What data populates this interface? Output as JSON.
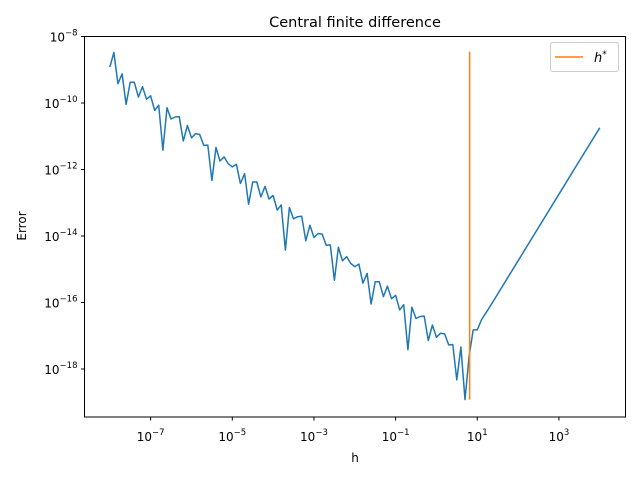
{
  "chart_data": {
    "type": "line",
    "title": "Central finite difference",
    "xlabel": "h",
    "ylabel": "Error",
    "xscale": "log",
    "yscale": "log",
    "xlim": [
      2.4e-09,
      42700
    ],
    "ylim": [
      3.6e-20,
      1e-08
    ],
    "grid": false,
    "legend_placement": "top-right",
    "xticks": [
      {
        "value": 1e-07,
        "base": "10",
        "exp": "−7"
      },
      {
        "value": 1e-05,
        "base": "10",
        "exp": "−5"
      },
      {
        "value": 0.001,
        "base": "10",
        "exp": "−3"
      },
      {
        "value": 0.1,
        "base": "10",
        "exp": "−1"
      },
      {
        "value": 10.0,
        "base": "10",
        "exp": "1"
      },
      {
        "value": 1000.0,
        "base": "10",
        "exp": "3"
      }
    ],
    "yticks": [
      {
        "value": 1e-08,
        "base": "10",
        "exp": "−8"
      },
      {
        "value": 1e-10,
        "base": "10",
        "exp": "−10"
      },
      {
        "value": 1e-12,
        "base": "10",
        "exp": "−12"
      },
      {
        "value": 1e-14,
        "base": "10",
        "exp": "−14"
      },
      {
        "value": 1e-16,
        "base": "10",
        "exp": "−16"
      },
      {
        "value": 1e-18,
        "base": "10",
        "exp": "−18"
      }
    ],
    "series": [
      {
        "color": "#1f77b4",
        "x": [
          1e-08,
          1.26e-08,
          1.58e-08,
          2e-08,
          2.51e-08,
          3.16e-08,
          3.98e-08,
          5.01e-08,
          6.31e-08,
          7.94e-08,
          1e-07,
          1.26e-07,
          1.58e-07,
          2e-07,
          2.51e-07,
          3.16e-07,
          3.98e-07,
          5.01e-07,
          6.31e-07,
          7.94e-07,
          1e-06,
          1.26e-06,
          1.58e-06,
          2e-06,
          2.51e-06,
          3.16e-06,
          3.98e-06,
          5.01e-06,
          6.31e-06,
          7.94e-06,
          1e-05,
          1.26e-05,
          1.58e-05,
          2e-05,
          2.51e-05,
          3.16e-05,
          3.98e-05,
          5.01e-05,
          6.31e-05,
          7.94e-05,
          0.0001,
          0.000126,
          0.000158,
          0.0002,
          0.000251,
          0.000316,
          0.000398,
          0.000501,
          0.000631,
          0.000794,
          0.001,
          0.00126,
          0.00158,
          0.002,
          0.00251,
          0.00316,
          0.00398,
          0.00501,
          0.00631,
          0.00794,
          0.01,
          0.0126,
          0.0158,
          0.02,
          0.0251,
          0.0316,
          0.0398,
          0.0501,
          0.0631,
          0.0794,
          0.1,
          0.126,
          0.158,
          0.2,
          0.251,
          0.316,
          0.398,
          0.501,
          0.631,
          0.794,
          1,
          1.26,
          1.58,
          2,
          2.51,
          3.16,
          3.98,
          5.01,
          6.31,
          7.94,
          10,
          12.6,
          20,
          31.6,
          50,
          100,
          316,
          1000,
          3162,
          10000
        ],
        "y": [
          1.2e-09,
          3.3e-09,
          3.8e-10,
          7.5e-10,
          9e-11,
          4.2e-10,
          4.2e-10,
          1.5e-10,
          3.1e-10,
          1.3e-10,
          1.65e-10,
          6e-11,
          8.6e-11,
          3.8e-12,
          7.2e-11,
          3.3e-11,
          3.8e-11,
          3.9e-11,
          7.2e-12,
          2.1e-11,
          9e-12,
          1.19e-11,
          1.14e-11,
          5.3e-12,
          5.4e-12,
          4.7e-13,
          4.6e-12,
          1.8e-12,
          2.4e-12,
          1.5e-12,
          1.2e-12,
          1.43e-12,
          3.8e-13,
          7.5e-13,
          9e-14,
          4.2e-13,
          4.2e-13,
          1.5e-13,
          3.1e-13,
          1.3e-13,
          1.65e-13,
          6e-14,
          8.6e-14,
          3.8e-15,
          7.2e-14,
          3.3e-14,
          3.8e-14,
          3.9e-14,
          7.2e-15,
          2.1e-14,
          9e-15,
          1.19e-14,
          1.14e-14,
          5.3e-15,
          5.4e-15,
          4.7e-16,
          4.6e-15,
          1.8e-15,
          2.4e-15,
          1.5e-15,
          1.2e-15,
          1.43e-15,
          3.8e-16,
          7.5e-16,
          9e-17,
          4.2e-16,
          4.2e-16,
          1.5e-16,
          3.1e-16,
          1.3e-16,
          1.65e-16,
          6e-17,
          8.6e-17,
          3.8e-18,
          7.2e-17,
          3.3e-17,
          3.8e-17,
          3.9e-17,
          7.2e-18,
          2.1e-17,
          9e-18,
          1.19e-17,
          1.14e-17,
          5.3e-18,
          5.4e-18,
          4.7e-19,
          4.6e-18,
          1.2e-19,
          2.4e-18,
          1.5e-17,
          1.5e-17,
          3e-17,
          7.2e-17,
          1.8e-16,
          4.5e-16,
          1.8e-15,
          1.8e-14,
          1.8e-13,
          1.8e-12,
          1.8e-11
        ]
      },
      {
        "name": "h*",
        "color": "#ff7f0e",
        "type": "vline",
        "x": 6.5,
        "ymin": 1.2e-19,
        "ymax": 3.5e-09
      }
    ],
    "legend": [
      {
        "label": "h",
        "sup": "*",
        "color": "#ff7f0e"
      }
    ]
  }
}
